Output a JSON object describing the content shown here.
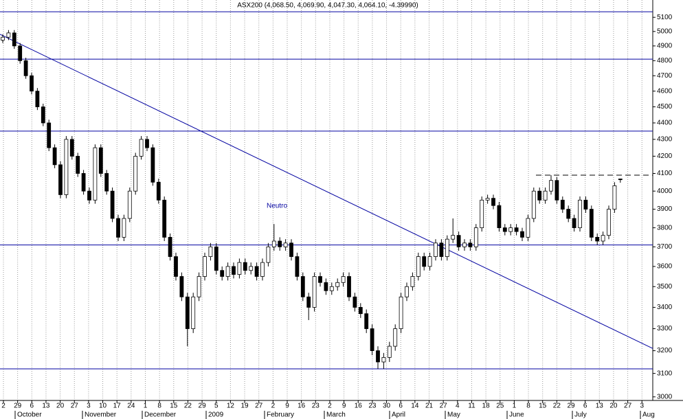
{
  "chart_data": {
    "type": "candlestick",
    "title": "ASX200 (4,068.50, 4,069.90, 4,047.30, 4,064.10, -4.39990)",
    "annotation": "Neutro",
    "log_scale": true,
    "grid": true,
    "up_color": "#ffffff",
    "down_color": "#000000",
    "line_color": "#0000a0",
    "ylim": [
      2985,
      5180
    ],
    "yticks": [
      3000,
      3100,
      3200,
      3300,
      3400,
      3500,
      3600,
      3700,
      3800,
      3900,
      4000,
      4100,
      4200,
      4300,
      4400,
      4500,
      4600,
      4700,
      4800,
      4900,
      5000,
      5100
    ],
    "categories": [
      "2",
      "29",
      "6",
      "13",
      "20",
      "27",
      "3",
      "10",
      "17",
      "24",
      "1",
      "8",
      "15",
      "22",
      "29",
      "5",
      "12",
      "19",
      "27",
      "2",
      "9",
      "16",
      "23",
      "2",
      "9",
      "16",
      "23",
      "30",
      "6",
      "14",
      "21",
      "27",
      "4",
      "11",
      "18",
      "25",
      "1",
      "8",
      "15",
      "22",
      "29",
      "6",
      "13",
      "20",
      "27",
      "3"
    ],
    "months": [
      "October",
      "November",
      "December",
      "2009",
      "February",
      "March",
      "April",
      "May",
      "June",
      "July",
      "Aug"
    ],
    "hlines": [
      5140,
      4810,
      4350,
      3710,
      3120
    ],
    "resistance": 4090,
    "trendline": {
      "start": 4980,
      "end": 3210
    },
    "ohlc": [
      [
        4940,
        4980,
        4920,
        4960
      ],
      [
        4960,
        5010,
        4940,
        4990
      ],
      [
        4990,
        5010,
        4880,
        4900
      ],
      [
        4900,
        4920,
        4780,
        4800
      ],
      [
        4800,
        4820,
        4680,
        4700
      ],
      [
        4700,
        4720,
        4580,
        4600
      ],
      [
        4600,
        4620,
        4480,
        4500
      ],
      [
        4500,
        4520,
        4380,
        4400
      ],
      [
        4400,
        4420,
        4230,
        4250
      ],
      [
        4250,
        4270,
        4130,
        4150
      ],
      [
        4150,
        4170,
        3960,
        3980
      ],
      [
        3980,
        4320,
        3960,
        4300
      ],
      [
        4300,
        4320,
        4180,
        4200
      ],
      [
        4200,
        4220,
        4080,
        4100
      ],
      [
        4100,
        4120,
        3980,
        4000
      ],
      [
        4000,
        4020,
        3930,
        3950
      ],
      [
        3950,
        4270,
        3930,
        4250
      ],
      [
        4250,
        4270,
        4080,
        4100
      ],
      [
        4100,
        4120,
        3980,
        4000
      ],
      [
        4000,
        4020,
        3830,
        3850
      ],
      [
        3850,
        3870,
        3730,
        3750
      ],
      [
        3750,
        3870,
        3730,
        3850
      ],
      [
        3850,
        4020,
        3830,
        4000
      ],
      [
        4000,
        4220,
        3980,
        4200
      ],
      [
        4200,
        4320,
        4180,
        4300
      ],
      [
        4300,
        4320,
        4230,
        4250
      ],
      [
        4250,
        4270,
        4030,
        4050
      ],
      [
        4050,
        4070,
        3930,
        3950
      ],
      [
        3950,
        3970,
        3730,
        3750
      ],
      [
        3750,
        3770,
        3630,
        3650
      ],
      [
        3650,
        3670,
        3530,
        3550
      ],
      [
        3550,
        3570,
        3430,
        3450
      ],
      [
        3450,
        3470,
        3220,
        3300
      ],
      [
        3300,
        3470,
        3280,
        3450
      ],
      [
        3450,
        3570,
        3430,
        3550
      ],
      [
        3550,
        3670,
        3530,
        3650
      ],
      [
        3650,
        3720,
        3630,
        3700
      ],
      [
        3700,
        3720,
        3560,
        3580
      ],
      [
        3580,
        3600,
        3530,
        3550
      ],
      [
        3550,
        3620,
        3530,
        3600
      ],
      [
        3600,
        3620,
        3540,
        3560
      ],
      [
        3560,
        3640,
        3540,
        3620
      ],
      [
        3620,
        3640,
        3560,
        3580
      ],
      [
        3580,
        3620,
        3560,
        3600
      ],
      [
        3600,
        3620,
        3530,
        3550
      ],
      [
        3550,
        3640,
        3530,
        3620
      ],
      [
        3620,
        3720,
        3600,
        3700
      ],
      [
        3700,
        3820,
        3680,
        3730
      ],
      [
        3730,
        3750,
        3680,
        3700
      ],
      [
        3700,
        3740,
        3680,
        3720
      ],
      [
        3720,
        3740,
        3630,
        3650
      ],
      [
        3650,
        3670,
        3530,
        3550
      ],
      [
        3550,
        3570,
        3430,
        3450
      ],
      [
        3450,
        3470,
        3340,
        3400
      ],
      [
        3400,
        3570,
        3380,
        3550
      ],
      [
        3550,
        3570,
        3500,
        3520
      ],
      [
        3520,
        3540,
        3460,
        3480
      ],
      [
        3480,
        3520,
        3460,
        3500
      ],
      [
        3500,
        3540,
        3480,
        3520
      ],
      [
        3520,
        3570,
        3500,
        3550
      ],
      [
        3550,
        3570,
        3430,
        3450
      ],
      [
        3450,
        3470,
        3380,
        3400
      ],
      [
        3400,
        3420,
        3350,
        3370
      ],
      [
        3370,
        3390,
        3280,
        3300
      ],
      [
        3300,
        3320,
        3180,
        3200
      ],
      [
        3200,
        3220,
        3120,
        3150
      ],
      [
        3150,
        3190,
        3120,
        3170
      ],
      [
        3170,
        3240,
        3150,
        3220
      ],
      [
        3220,
        3320,
        3200,
        3300
      ],
      [
        3300,
        3470,
        3280,
        3450
      ],
      [
        3450,
        3520,
        3430,
        3500
      ],
      [
        3500,
        3570,
        3480,
        3550
      ],
      [
        3550,
        3670,
        3530,
        3650
      ],
      [
        3650,
        3670,
        3580,
        3600
      ],
      [
        3600,
        3670,
        3580,
        3650
      ],
      [
        3650,
        3740,
        3630,
        3720
      ],
      [
        3720,
        3740,
        3630,
        3650
      ],
      [
        3650,
        3760,
        3630,
        3740
      ],
      [
        3740,
        3850,
        3720,
        3760
      ],
      [
        3760,
        3780,
        3680,
        3700
      ],
      [
        3700,
        3740,
        3680,
        3720
      ],
      [
        3720,
        3740,
        3680,
        3700
      ],
      [
        3700,
        3820,
        3680,
        3800
      ],
      [
        3800,
        3970,
        3780,
        3950
      ],
      [
        3950,
        3980,
        3930,
        3960
      ],
      [
        3960,
        3980,
        3900,
        3920
      ],
      [
        3920,
        3940,
        3780,
        3800
      ],
      [
        3800,
        3820,
        3760,
        3780
      ],
      [
        3780,
        3820,
        3760,
        3800
      ],
      [
        3800,
        3820,
        3760,
        3780
      ],
      [
        3780,
        3800,
        3730,
        3750
      ],
      [
        3750,
        3870,
        3730,
        3850
      ],
      [
        3850,
        4020,
        3830,
        4000
      ],
      [
        4000,
        4020,
        3930,
        3950
      ],
      [
        3950,
        4020,
        3930,
        4000
      ],
      [
        4000,
        4090,
        3980,
        4060
      ],
      [
        4060,
        4080,
        3930,
        3950
      ],
      [
        3950,
        3970,
        3880,
        3900
      ],
      [
        3900,
        3920,
        3830,
        3850
      ],
      [
        3850,
        3870,
        3780,
        3800
      ],
      [
        3800,
        3970,
        3780,
        3950
      ],
      [
        3950,
        3970,
        3880,
        3900
      ],
      [
        3900,
        3920,
        3730,
        3750
      ],
      [
        3750,
        3770,
        3710,
        3730
      ],
      [
        3730,
        3780,
        3710,
        3760
      ],
      [
        3760,
        3920,
        3740,
        3900
      ],
      [
        3900,
        4050,
        3880,
        4030
      ],
      [
        4068.5,
        4069.9,
        4047.3,
        4064.1
      ]
    ]
  }
}
